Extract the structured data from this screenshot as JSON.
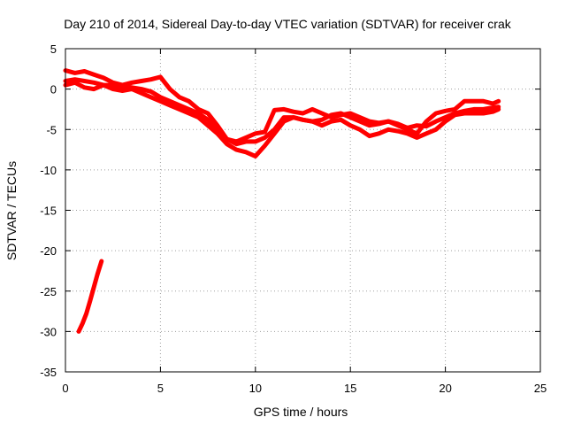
{
  "chart_data": {
    "type": "line",
    "title": "Day 210 of 2014, Sidereal Day-to-day VTEC variation (SDTVAR) for receiver crak",
    "xlabel": "GPS time / hours",
    "ylabel": "SDTVAR / TECUs",
    "xlim": [
      0,
      25
    ],
    "ylim": [
      -35,
      5
    ],
    "xticks": [
      0,
      5,
      10,
      15,
      20,
      25
    ],
    "yticks": [
      5,
      0,
      -5,
      -10,
      -15,
      -20,
      -25,
      -30,
      -35
    ],
    "grid": true,
    "color": "#ff0000",
    "series": [
      {
        "name": "sdtvar-main-trace",
        "x": [
          0.0,
          0.5,
          1.0,
          1.5,
          2.0,
          2.5,
          3.0,
          3.5,
          4.0,
          4.5,
          5.0,
          5.5,
          6.0,
          6.5,
          7.0,
          7.5,
          8.0,
          8.5,
          9.0,
          9.5,
          10.0,
          10.5,
          11.0,
          11.5,
          12.0,
          12.5,
          13.0,
          13.5,
          14.0,
          14.5,
          15.0,
          15.5,
          16.0,
          16.5,
          17.0,
          17.5,
          18.0,
          18.5,
          19.0,
          19.5,
          20.0,
          20.5,
          21.0,
          21.5,
          22.0,
          22.5,
          22.8
        ],
        "y": [
          1.0,
          1.2,
          1.0,
          0.8,
          0.5,
          0.5,
          0.3,
          0.2,
          0.0,
          -0.3,
          -1.0,
          -1.5,
          -2.0,
          -2.5,
          -3.0,
          -3.8,
          -5.0,
          -6.2,
          -6.8,
          -6.5,
          -6.5,
          -6.0,
          -5.0,
          -3.5,
          -3.5,
          -3.8,
          -4.0,
          -3.8,
          -3.2,
          -3.0,
          -3.5,
          -4.0,
          -4.5,
          -4.3,
          -4.0,
          -4.3,
          -4.8,
          -4.5,
          -4.6,
          -4.0,
          -3.5,
          -3.0,
          -2.7,
          -2.5,
          -2.5,
          -2.3,
          -2.2
        ]
      },
      {
        "name": "sdtvar-upper-trace",
        "x": [
          0.0,
          0.5,
          1.0,
          1.5,
          2.0,
          2.5,
          3.0,
          3.5,
          4.0,
          4.5,
          5.0,
          5.5,
          6.0,
          6.5,
          7.0,
          7.5,
          8.0,
          8.5,
          9.0,
          9.5,
          10.0,
          10.5,
          11.0,
          11.5,
          12.0,
          12.5,
          13.0,
          13.5,
          14.0,
          14.5,
          15.0,
          15.5,
          16.0,
          16.5,
          17.0,
          17.5,
          18.0,
          18.5,
          19.0,
          19.5,
          20.0,
          20.5,
          21.0,
          21.5,
          22.0,
          22.5,
          22.8
        ],
        "y": [
          2.3,
          2.0,
          2.2,
          1.8,
          1.4,
          0.8,
          0.5,
          0.8,
          1.0,
          1.2,
          1.5,
          0.0,
          -1.0,
          -1.5,
          -2.5,
          -3.0,
          -4.5,
          -6.2,
          -6.5,
          -6.0,
          -5.5,
          -5.3,
          -2.6,
          -2.5,
          -2.8,
          -3.0,
          -2.5,
          -3.0,
          -3.5,
          -3.2,
          -3.0,
          -3.5,
          -4.0,
          -4.2,
          -4.0,
          -4.5,
          -5.0,
          -5.5,
          -4.0,
          -3.0,
          -2.7,
          -2.5,
          -1.5,
          -1.5,
          -1.5,
          -1.8,
          -1.5
        ]
      },
      {
        "name": "sdtvar-lower-trace",
        "x": [
          0.0,
          0.5,
          1.0,
          1.5,
          2.0,
          2.5,
          3.0,
          3.5,
          4.0,
          4.5,
          5.0,
          5.5,
          6.0,
          6.5,
          7.0,
          7.5,
          8.0,
          8.5,
          9.0,
          9.5,
          10.0,
          10.5,
          11.0,
          11.5,
          12.0,
          12.5,
          13.0,
          13.5,
          14.0,
          14.5,
          15.0,
          15.5,
          16.0,
          16.5,
          17.0,
          17.5,
          18.0,
          18.5,
          19.0,
          19.5,
          20.0,
          20.5,
          21.0,
          21.5,
          22.0,
          22.5,
          22.8
        ],
        "y": [
          0.5,
          0.8,
          0.2,
          0.0,
          0.5,
          0.0,
          -0.2,
          0.0,
          -0.5,
          -1.0,
          -1.5,
          -2.0,
          -2.5,
          -3.0,
          -3.5,
          -4.5,
          -5.5,
          -6.8,
          -7.5,
          -7.8,
          -8.3,
          -7.0,
          -5.5,
          -4.0,
          -3.5,
          -3.8,
          -4.0,
          -4.5,
          -4.0,
          -3.8,
          -4.5,
          -5.0,
          -5.8,
          -5.5,
          -5.0,
          -5.2,
          -5.5,
          -6.0,
          -5.5,
          -5.0,
          -4.0,
          -3.2,
          -3.0,
          -3.0,
          -3.0,
          -2.8,
          -2.5
        ]
      },
      {
        "name": "sdtvar-early-segment",
        "x": [
          0.7,
          0.9,
          1.1,
          1.3,
          1.5,
          1.7,
          1.9
        ],
        "y": [
          -30.0,
          -29.0,
          -27.8,
          -26.2,
          -24.5,
          -22.8,
          -21.3
        ]
      }
    ]
  }
}
